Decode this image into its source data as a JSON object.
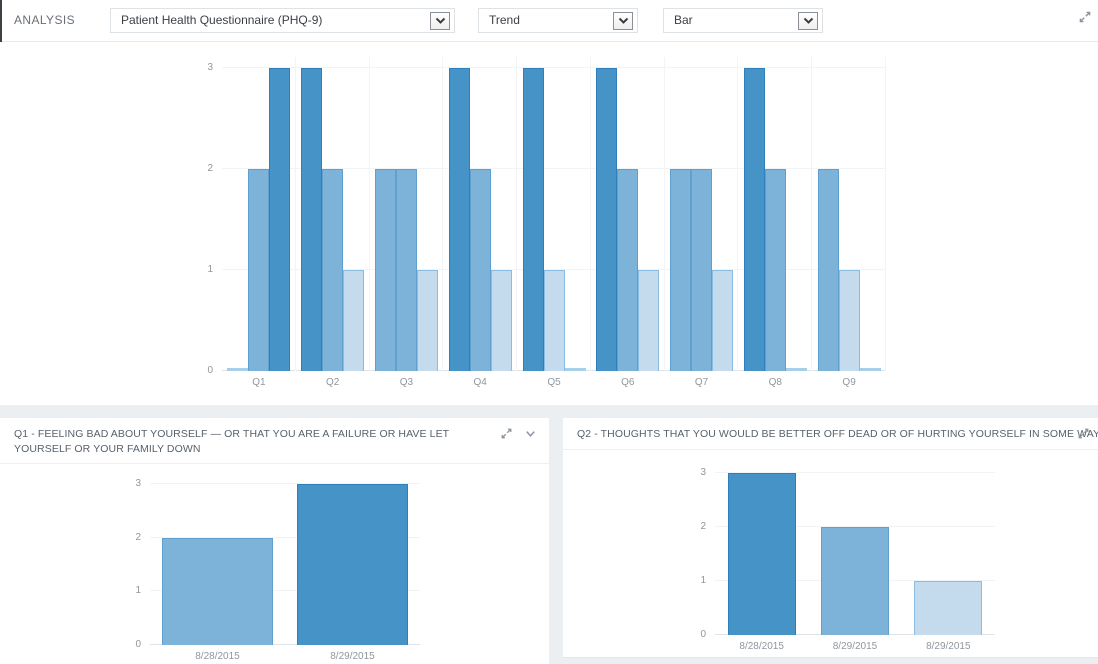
{
  "toolbar": {
    "section_label": "ANALYSIS",
    "selects": [
      {
        "value": "Patient Health Questionnaire (PHQ-9)"
      },
      {
        "value": "Trend"
      },
      {
        "value": "Bar"
      }
    ]
  },
  "icons": {
    "expand": "expand-icon",
    "collapse": "chevron-down-icon",
    "select_arrow": "chevron-down-icon"
  },
  "colors": {
    "score3": "#4693c8",
    "score3_border": "#2f80ba",
    "score2": "#7db3d9",
    "score2_border": "#5fa0ce",
    "score1": "#c4dbee",
    "score1_border": "#8abde1",
    "score0": "#a8cfe9",
    "grid": "#f1f3f6",
    "axis": "#dfe4e8"
  },
  "chart_data": [
    {
      "id": "trend",
      "type": "bar",
      "title": "",
      "categories": [
        "Q1",
        "Q2",
        "Q3",
        "Q4",
        "Q5",
        "Q6",
        "Q7",
        "Q8",
        "Q9"
      ],
      "groups": [
        [
          0,
          2,
          3
        ],
        [
          3,
          2,
          1
        ],
        [
          2,
          2,
          1
        ],
        [
          3,
          2,
          1
        ],
        [
          3,
          1,
          0
        ],
        [
          3,
          2,
          1
        ],
        [
          2,
          2,
          1
        ],
        [
          3,
          2,
          0
        ],
        [
          2,
          1,
          0
        ]
      ],
      "series_note": "3 assessments per question; bar color encodes score (3=dark, 2=medium, 1=light, 0=flat)",
      "yticks": [
        0,
        1,
        2,
        3
      ],
      "ylim": [
        0,
        3
      ],
      "grid": true,
      "legend": "none"
    },
    {
      "id": "q1-detail",
      "type": "bar",
      "title": "Q1 - FEELING BAD ABOUT YOURSELF — OR THAT YOU ARE A FAILURE OR HAVE LET YOURSELF OR YOUR FAMILY DOWN",
      "categories": [
        "8/28/2015",
        "8/29/2015"
      ],
      "values": [
        2,
        3
      ],
      "yticks": [
        0,
        1,
        2,
        3
      ],
      "ylim": [
        0,
        3
      ],
      "grid": true,
      "legend": "none"
    },
    {
      "id": "q2-detail",
      "type": "bar",
      "title": "Q2 - THOUGHTS THAT YOU WOULD BE BETTER OFF DEAD OR OF HURTING YOURSELF IN SOME WAY",
      "categories": [
        "8/28/2015",
        "8/29/2015",
        "8/29/2015"
      ],
      "values": [
        3,
        2,
        1
      ],
      "yticks": [
        0,
        1,
        2,
        3
      ],
      "ylim": [
        0,
        3
      ],
      "grid": true,
      "legend": "none"
    }
  ]
}
